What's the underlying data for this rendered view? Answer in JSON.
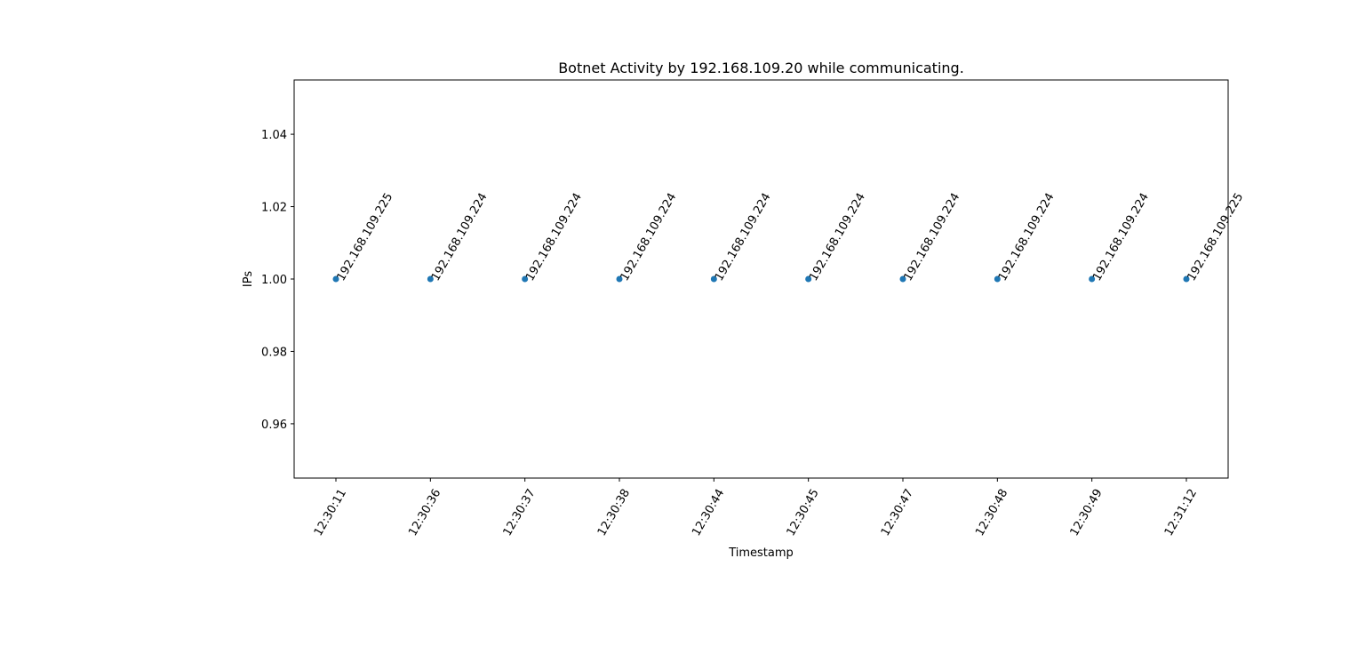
{
  "chart_data": {
    "type": "scatter",
    "title": "Botnet Activity by 192.168.109.20 while communicating.",
    "xlabel": "Timestamp",
    "ylabel": "IPs",
    "categories": [
      "12:30:11",
      "12:30:36",
      "12:30:37",
      "12:30:38",
      "12:30:44",
      "12:30:45",
      "12:30:47",
      "12:30:48",
      "12:30:49",
      "12:31:12"
    ],
    "ylim": [
      0.945,
      1.055
    ],
    "yticks": [
      0.96,
      0.98,
      1.0,
      1.02,
      1.04
    ],
    "ytick_labels": [
      "0.96",
      "0.98",
      "1.00",
      "1.02",
      "1.04"
    ],
    "grid": false,
    "legend": "none",
    "marker_color": "#1f77b4",
    "points": [
      {
        "x": "12:30:11",
        "y": 1.0,
        "label": "192.168.109.225"
      },
      {
        "x": "12:30:36",
        "y": 1.0,
        "label": "192.168.109.224"
      },
      {
        "x": "12:30:37",
        "y": 1.0,
        "label": "192.168.109.224"
      },
      {
        "x": "12:30:38",
        "y": 1.0,
        "label": "192.168.109.224"
      },
      {
        "x": "12:30:44",
        "y": 1.0,
        "label": "192.168.109.224"
      },
      {
        "x": "12:30:45",
        "y": 1.0,
        "label": "192.168.109.224"
      },
      {
        "x": "12:30:47",
        "y": 1.0,
        "label": "192.168.109.224"
      },
      {
        "x": "12:30:48",
        "y": 1.0,
        "label": "192.168.109.224"
      },
      {
        "x": "12:30:49",
        "y": 1.0,
        "label": "192.168.109.224"
      },
      {
        "x": "12:31:12",
        "y": 1.0,
        "label": "192.168.109.225"
      }
    ]
  }
}
